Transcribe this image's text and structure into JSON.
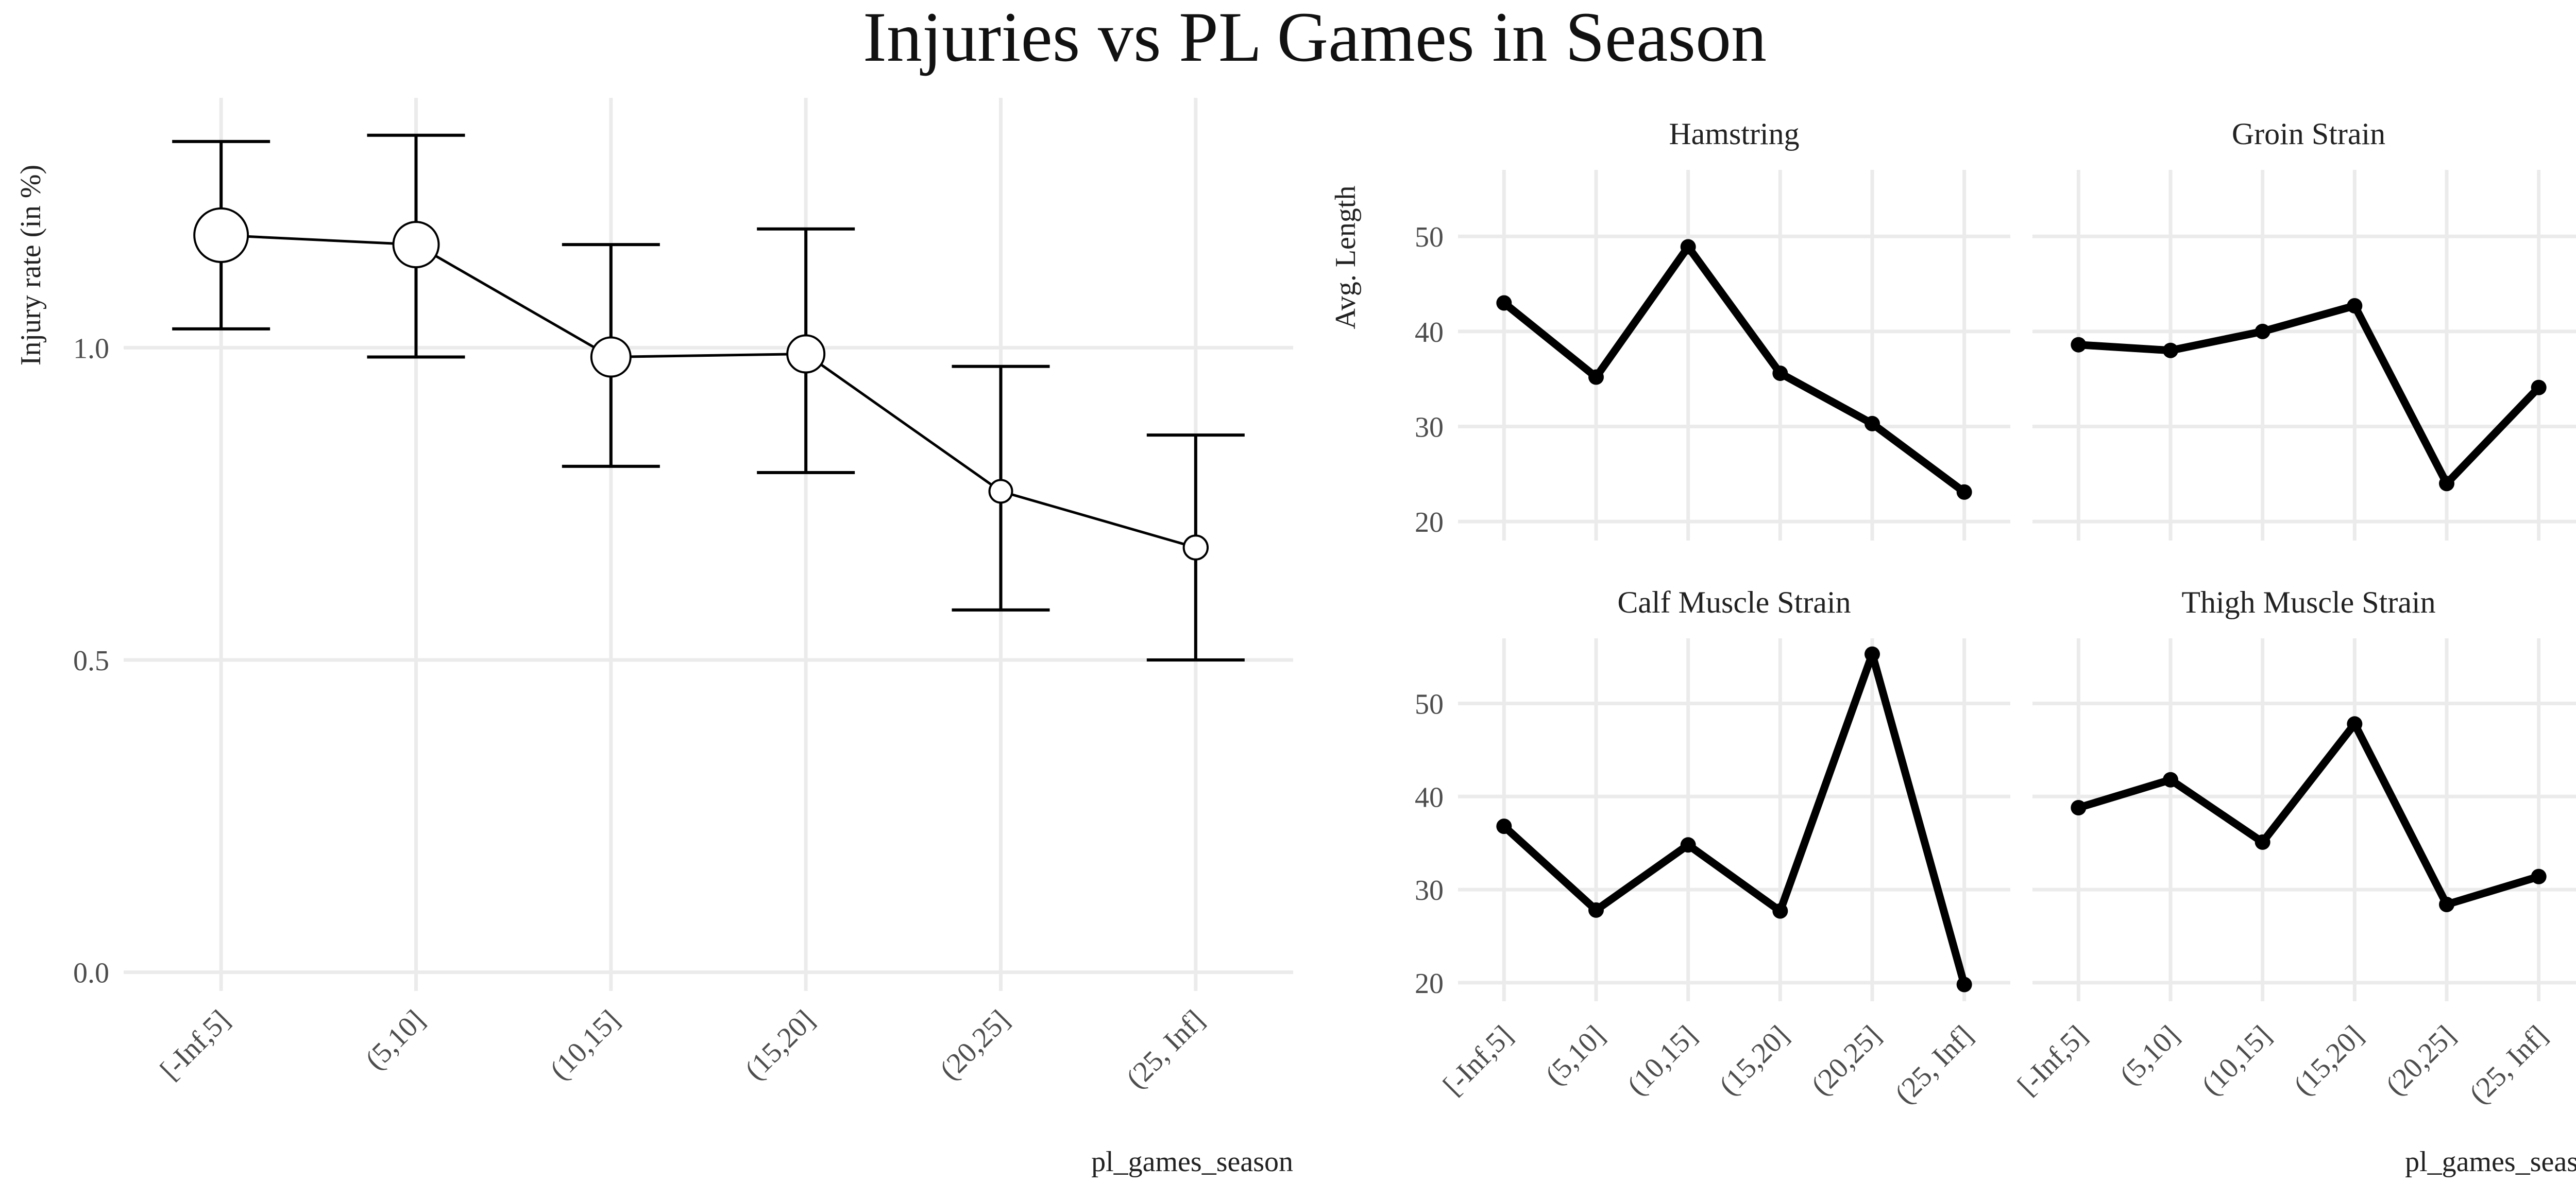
{
  "title": "Injuries vs PL Games in Season",
  "chart_data": [
    {
      "type": "line",
      "title": "",
      "xlabel": "pl_games_season",
      "ylabel": "Injury rate (in %)",
      "categories": [
        "[-Inf,5]",
        "(5,10]",
        "(10,15]",
        "(15,20]",
        "(20,25]",
        "(25, Inf]"
      ],
      "y_ticks": [
        0.0,
        0.5,
        1.0
      ],
      "y_tick_labels": [
        "0.0",
        "0.5",
        "1.0"
      ],
      "ylim": [
        -0.03,
        1.4
      ],
      "grid": true,
      "series": [
        {
          "values": [
            1.18,
            1.165,
            0.985,
            0.99,
            0.77,
            0.68
          ],
          "lower": [
            1.03,
            0.985,
            0.81,
            0.8,
            0.58,
            0.5
          ],
          "upper": [
            1.33,
            1.34,
            1.165,
            1.19,
            0.97,
            0.86
          ],
          "point_size_rel": [
            1.0,
            0.8,
            0.65,
            0.6,
            0.25,
            0.28
          ]
        }
      ]
    },
    {
      "type": "line",
      "layout": "facet 2x2",
      "xlabel": "pl_games_season",
      "ylabel": "Avg. Length",
      "categories": [
        "[-Inf,5]",
        "(5,10]",
        "(10,15]",
        "(15,20]",
        "(20,25]",
        "(25, Inf]"
      ],
      "y_ticks": [
        20,
        30,
        40,
        50
      ],
      "y_tick_labels": [
        "20",
        "30",
        "40",
        "50"
      ],
      "ylim": [
        18,
        57
      ],
      "grid": true,
      "panels": [
        {
          "title": "Hamstring",
          "values": [
            43.0,
            35.2,
            48.9,
            35.6,
            30.3,
            23.1
          ]
        },
        {
          "title": "Groin Strain",
          "values": [
            38.6,
            38.0,
            40.0,
            42.7,
            24.0,
            34.1
          ]
        },
        {
          "title": "Calf Muscle Strain",
          "values": [
            36.8,
            27.8,
            34.8,
            27.7,
            55.3,
            19.8
          ]
        },
        {
          "title": "Thigh Muscle Strain",
          "values": [
            38.8,
            41.8,
            35.1,
            47.8,
            28.4,
            31.4
          ]
        }
      ]
    }
  ]
}
